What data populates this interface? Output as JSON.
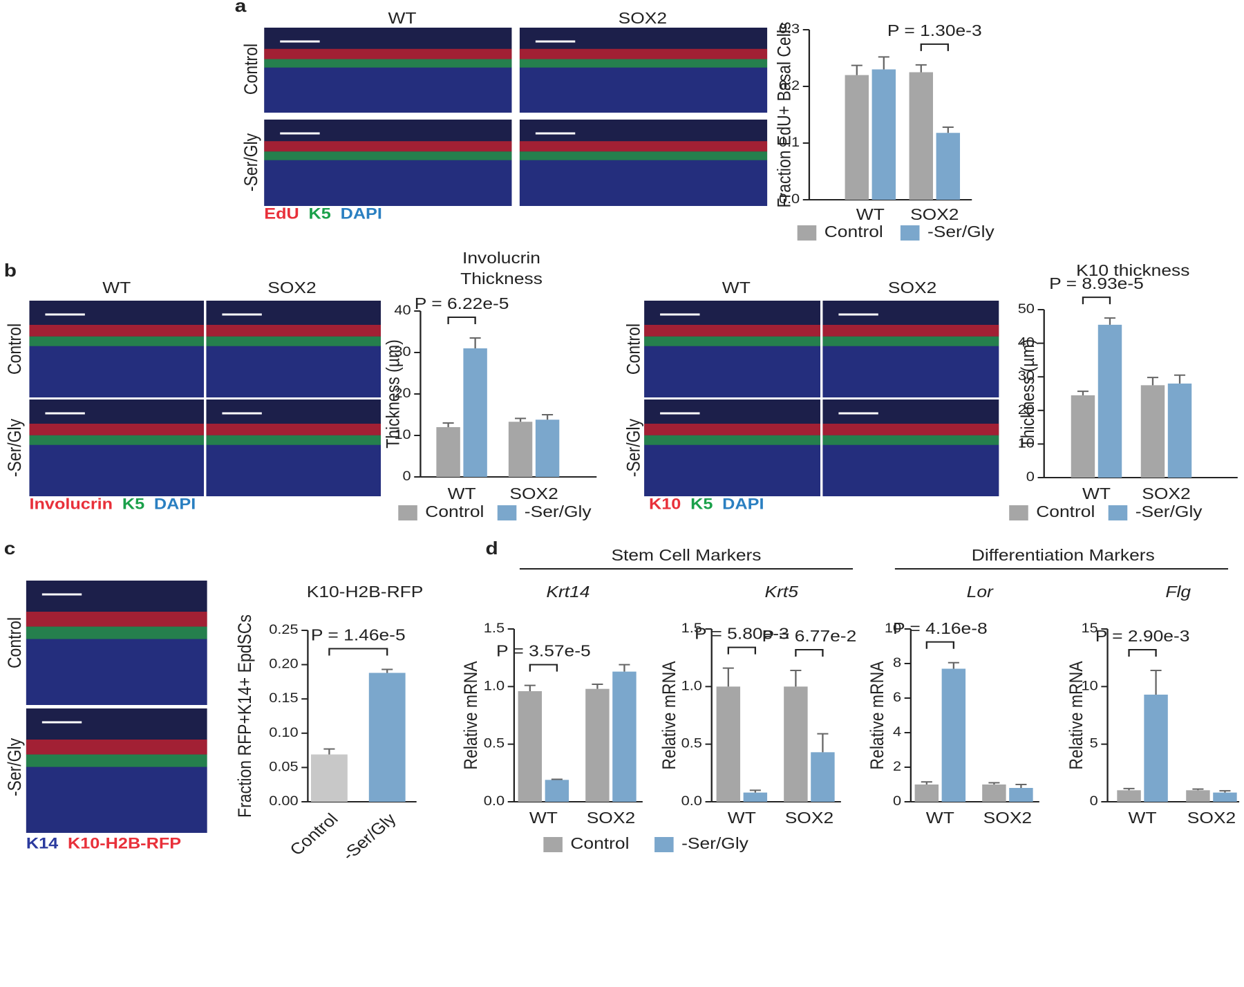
{
  "chart_data": [
    {
      "type": "bar",
      "ylabel": "Fraction EdU+ Basal Cells",
      "categories": [
        "WT",
        "SOX2"
      ],
      "series": [
        {
          "name": "Control",
          "color": "#a6a6a6",
          "values": [
            0.22,
            0.225
          ],
          "errors": [
            0.017,
            0.013
          ]
        },
        {
          "name": "-Ser/Gly",
          "color": "#7ba7cc",
          "values": [
            0.23,
            0.118
          ],
          "errors": [
            0.022,
            0.01
          ]
        }
      ],
      "ylim": [
        0,
        0.3
      ],
      "yticks": [
        {
          "value": 0,
          "label": "0.0"
        },
        {
          "value": 0.1,
          "label": "0.1"
        },
        {
          "value": 0.2,
          "label": "0.2"
        },
        {
          "value": 0.3,
          "label": "0.3"
        }
      ],
      "annotations": [
        {
          "text": "P = 1.30e-3",
          "category": 1
        }
      ]
    },
    {
      "type": "bar",
      "title": [
        "Involucrin",
        "Thickness"
      ],
      "ylabel": "Thickness (µm)",
      "categories": [
        "WT",
        "SOX2"
      ],
      "series": [
        {
          "name": "Control",
          "color": "#a6a6a6",
          "values": [
            12,
            13.3
          ],
          "errors": [
            1,
            0.8
          ]
        },
        {
          "name": "-Ser/Gly",
          "color": "#7ba7cc",
          "values": [
            31,
            13.8
          ],
          "errors": [
            2.5,
            1.2
          ]
        }
      ],
      "ylim": [
        0,
        40
      ],
      "yticks": [
        0,
        10,
        20,
        30,
        40
      ],
      "annotations": [
        {
          "text": "P = 6.22e-5",
          "category": 0
        }
      ]
    },
    {
      "type": "bar",
      "title": [
        "K10 thickness"
      ],
      "ylabel": "Thickness (µm)",
      "categories": [
        "WT",
        "SOX2"
      ],
      "series": [
        {
          "name": "Control",
          "color": "#a6a6a6",
          "values": [
            24.5,
            27.5
          ],
          "errors": [
            1.2,
            2.3
          ]
        },
        {
          "name": "-Ser/Gly",
          "color": "#7ba7cc",
          "values": [
            45.5,
            28
          ],
          "errors": [
            2,
            2.5
          ]
        }
      ],
      "ylim": [
        0,
        50
      ],
      "yticks": [
        0,
        10,
        20,
        30,
        40,
        50
      ],
      "annotations": [
        {
          "text": "P = 8.93e-5",
          "category": 0
        }
      ]
    },
    {
      "type": "bar",
      "title": [
        "K10-H2B-RFP"
      ],
      "ylabel": "Fraction RFP+K14+ EpdSCs",
      "categories": [
        "Control",
        "-Ser/Gly"
      ],
      "values": [
        0.069,
        0.188
      ],
      "errors": [
        0.008,
        0.005
      ],
      "colors": [
        "#c8c8c8",
        "#7ba7cc"
      ],
      "ylim": [
        0,
        0.25
      ],
      "yticks": [
        {
          "value": 0,
          "label": "0.00"
        },
        {
          "value": 0.05,
          "label": "0.05"
        },
        {
          "value": 0.1,
          "label": "0.10"
        },
        {
          "value": 0.15,
          "label": "0.15"
        },
        {
          "value": 0.2,
          "label": "0.20"
        },
        {
          "value": 0.25,
          "label": "0.25"
        }
      ],
      "annotations": [
        {
          "text": "P =  1.46e-5"
        }
      ]
    },
    {
      "type": "bar",
      "title": [
        "Krt14"
      ],
      "italic_title": true,
      "ylabel": "Relative mRNA",
      "categories": [
        "WT",
        "SOX2"
      ],
      "series": [
        {
          "name": "Control",
          "color": "#a6a6a6",
          "values": [
            0.96,
            0.98
          ],
          "errors": [
            0.05,
            0.04
          ]
        },
        {
          "name": "-Ser/Gly",
          "color": "#7ba7cc",
          "values": [
            0.19,
            1.13
          ],
          "errors": [
            0.005,
            0.06
          ]
        }
      ],
      "ylim": [
        0,
        1.5
      ],
      "yticks": [
        {
          "value": 0,
          "label": "0.0"
        },
        {
          "value": 0.5,
          "label": "0.5"
        },
        {
          "value": 1,
          "label": "1.0"
        },
        {
          "value": 1.5,
          "label": "1.5"
        }
      ],
      "annotations": [
        {
          "text": "P = 3.57e-5",
          "category": 0
        }
      ]
    },
    {
      "type": "bar",
      "title": [
        "Krt5"
      ],
      "italic_title": true,
      "ylabel": "Relative mRNA",
      "categories": [
        "WT",
        "SOX2"
      ],
      "series": [
        {
          "name": "Control",
          "color": "#a6a6a6",
          "values": [
            1.0,
            1.0
          ],
          "errors": [
            0.16,
            0.14
          ]
        },
        {
          "name": "-Ser/Gly",
          "color": "#7ba7cc",
          "values": [
            0.08,
            0.43
          ],
          "errors": [
            0.02,
            0.16
          ]
        }
      ],
      "ylim": [
        0,
        1.5
      ],
      "yticks": [
        {
          "value": 0,
          "label": "0.0"
        },
        {
          "value": 0.5,
          "label": "0.5"
        },
        {
          "value": 1,
          "label": "1.0"
        },
        {
          "value": 1.5,
          "label": "1.5"
        }
      ],
      "annotations": [
        {
          "text": "P = 5.80e-3",
          "category": 0
        },
        {
          "text": "P = 6.77e-2",
          "category": 1
        }
      ]
    },
    {
      "type": "bar",
      "title": [
        "Lor"
      ],
      "italic_title": true,
      "ylabel": "Relative mRNA",
      "categories": [
        "WT",
        "SOX2"
      ],
      "series": [
        {
          "name": "Control",
          "color": "#a6a6a6",
          "values": [
            1.0,
            1.0
          ],
          "errors": [
            0.15,
            0.1
          ]
        },
        {
          "name": "-Ser/Gly",
          "color": "#7ba7cc",
          "values": [
            7.7,
            0.8
          ],
          "errors": [
            0.35,
            0.2
          ]
        }
      ],
      "ylim": [
        0,
        10
      ],
      "yticks": [
        0,
        2,
        4,
        6,
        8,
        10
      ],
      "annotations": [
        {
          "text": "P = 4.16e-8",
          "category": 0
        }
      ]
    },
    {
      "type": "bar",
      "title": [
        "Flg"
      ],
      "italic_title": true,
      "ylabel": "Relative mRNA",
      "categories": [
        "WT",
        "SOX2"
      ],
      "series": [
        {
          "name": "Control",
          "color": "#a6a6a6",
          "values": [
            1.0,
            1.0
          ],
          "errors": [
            0.15,
            0.1
          ]
        },
        {
          "name": "-Ser/Gly",
          "color": "#7ba7cc",
          "values": [
            9.3,
            0.8
          ],
          "errors": [
            2.1,
            0.15
          ]
        }
      ],
      "ylim": [
        0,
        15
      ],
      "yticks": [
        0,
        5,
        10,
        15
      ],
      "annotations": [
        {
          "text": "P = 2.90e-3",
          "category": 0
        }
      ]
    }
  ],
  "figure": {
    "panel_letters": [
      "a",
      "b",
      "c",
      "d"
    ],
    "image_panels": [
      {
        "columns": [
          "WT",
          "SOX2"
        ],
        "rows": [
          "Control",
          "-Ser/Gly"
        ],
        "stains": [
          {
            "text": "EdU",
            "color": "#e8303a"
          },
          {
            "text": "K5",
            "color": "#1aa04a"
          },
          {
            "text": "DAPI",
            "color": "#2a7fc1"
          }
        ]
      },
      {
        "columns": [
          "WT",
          "SOX2"
        ],
        "rows": [
          "Control",
          "-Ser/Gly"
        ],
        "stains": [
          {
            "text": "Involucrin",
            "color": "#e8303a"
          },
          {
            "text": "K5",
            "color": "#1aa04a"
          },
          {
            "text": "DAPI",
            "color": "#2a7fc1"
          }
        ]
      },
      {
        "columns": [
          "WT",
          "SOX2"
        ],
        "rows": [
          "Control",
          "-Ser/Gly"
        ],
        "stains": [
          {
            "text": "K10",
            "color": "#e8303a"
          },
          {
            "text": "K5",
            "color": "#1aa04a"
          },
          {
            "text": "DAPI",
            "color": "#2a7fc1"
          }
        ]
      },
      {
        "rows": [
          "Control",
          "-Ser/Gly"
        ],
        "stains": [
          {
            "text": "K14",
            "color": "#2b3a9e"
          },
          {
            "text": "K10-H2B-RFP",
            "color": "#e8303a"
          }
        ]
      }
    ],
    "group_headers": [
      "Stem Cell Markers",
      "Differentiation Markers"
    ]
  }
}
